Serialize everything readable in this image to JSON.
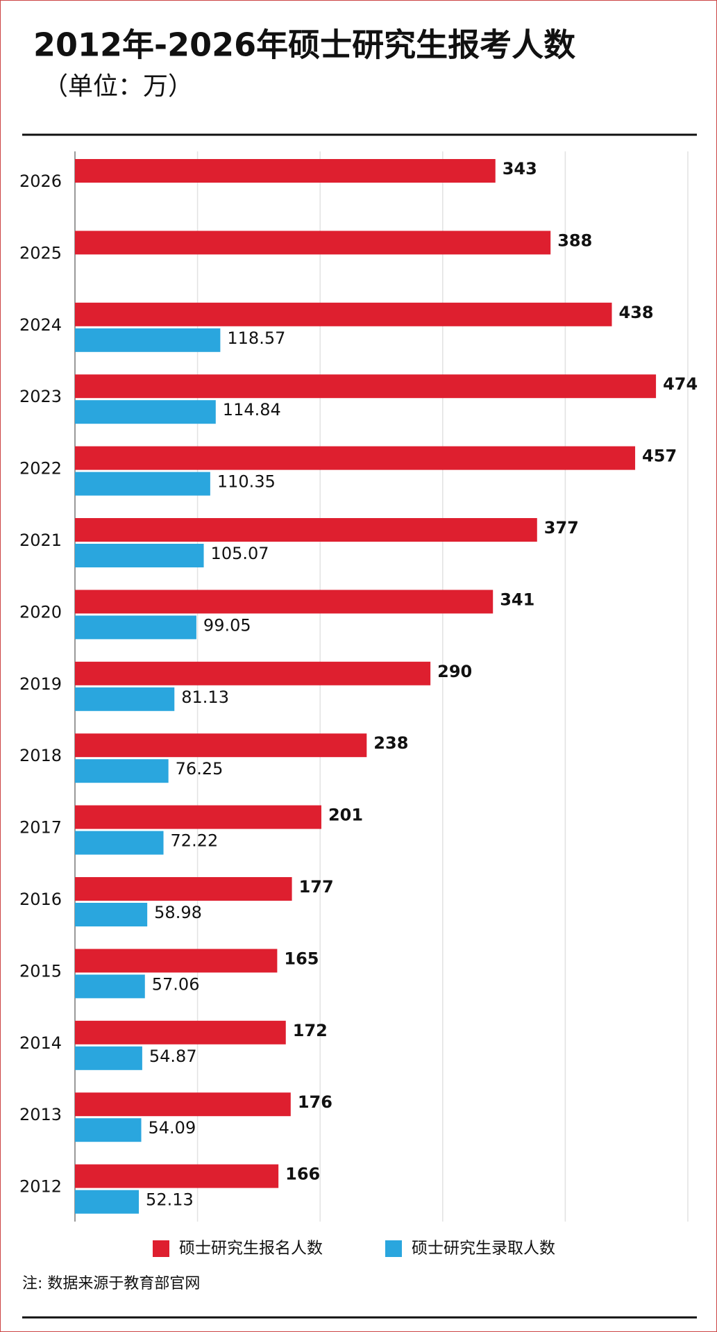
{
  "chart_data": {
    "type": "bar",
    "orientation": "horizontal",
    "title": "2012年-2026年硕士研究生报考人数",
    "subtitle": "（单位：万）",
    "categories": [
      "2026",
      "2025",
      "2024",
      "2023",
      "2022",
      "2021",
      "2020",
      "2019",
      "2018",
      "2017",
      "2016",
      "2015",
      "2014",
      "2013",
      "2012"
    ],
    "series": [
      {
        "name": "硕士研究生报名人数",
        "color": "#de1f2f",
        "values": [
          343,
          388,
          438,
          474,
          457,
          377,
          341,
          290,
          238,
          201,
          177,
          165,
          172,
          176,
          166
        ]
      },
      {
        "name": "硕士研究生录取人数",
        "color": "#2aa6de",
        "values": [
          null,
          null,
          118.57,
          114.84,
          110.35,
          105.07,
          99.05,
          81.13,
          76.25,
          72.22,
          58.98,
          57.06,
          54.87,
          54.09,
          52.13
        ]
      }
    ],
    "xlim": [
      0,
      500
    ],
    "xticks": [
      0,
      100,
      200,
      300,
      400,
      500
    ],
    "grid": true,
    "note": "注:  数据来源于教育部官网"
  }
}
